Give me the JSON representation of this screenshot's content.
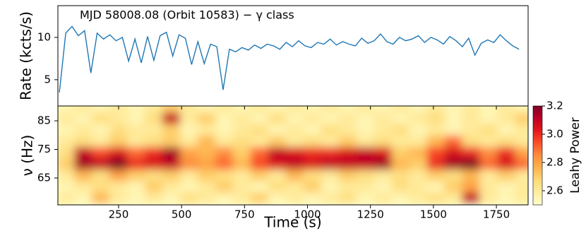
{
  "chart_data": [
    {
      "type": "line",
      "title": "MJD 58008.08 (Orbit 10583) − γ class",
      "y_label": "Rate (kcts/s)",
      "color": "#1f77b4",
      "x": [
        15,
        40,
        65,
        90,
        115,
        140,
        165,
        190,
        215,
        240,
        265,
        290,
        315,
        340,
        365,
        390,
        415,
        440,
        465,
        490,
        515,
        540,
        565,
        590,
        615,
        640,
        665,
        690,
        715,
        740,
        765,
        790,
        815,
        840,
        865,
        890,
        915,
        940,
        965,
        990,
        1015,
        1040,
        1065,
        1090,
        1115,
        1140,
        1165,
        1190,
        1215,
        1240,
        1265,
        1290,
        1315,
        1340,
        1365,
        1390,
        1415,
        1440,
        1465,
        1490,
        1515,
        1540,
        1565,
        1590,
        1615,
        1640,
        1665,
        1690,
        1715,
        1740,
        1765,
        1790,
        1815,
        1840
      ],
      "values": [
        3.5,
        10.5,
        11.3,
        10.2,
        10.8,
        5.8,
        10.5,
        9.8,
        10.3,
        9.6,
        10.0,
        7.2,
        9.8,
        7.0,
        10.1,
        7.3,
        10.2,
        10.6,
        7.8,
        10.3,
        9.9,
        6.8,
        9.5,
        6.9,
        9.2,
        8.9,
        3.8,
        8.6,
        8.3,
        8.8,
        8.5,
        9.1,
        8.7,
        9.2,
        9.0,
        8.6,
        9.4,
        8.9,
        9.6,
        9.0,
        8.8,
        9.4,
        9.2,
        9.8,
        9.1,
        9.5,
        9.2,
        9.0,
        9.9,
        9.3,
        9.6,
        10.4,
        9.5,
        9.2,
        10.0,
        9.6,
        9.8,
        10.2,
        9.4,
        10.0,
        9.7,
        9.2,
        10.1,
        9.6,
        8.9,
        9.9,
        7.9,
        9.3,
        9.7,
        9.4,
        10.3,
        9.6,
        9.0,
        8.6
      ],
      "xlim": [
        9,
        1876
      ],
      "ylim": [
        1.9,
        13.75
      ],
      "yticks": [
        5,
        10
      ]
    },
    {
      "type": "heatmap",
      "x_label": "Time (s)",
      "y_label": "ν (Hz)",
      "colorbar_label": "Leahy Power",
      "x": [
        40,
        110,
        180,
        250,
        320,
        390,
        460,
        530,
        600,
        670,
        740,
        810,
        880,
        950,
        1020,
        1090,
        1160,
        1230,
        1300,
        1370,
        1440,
        1510,
        1580,
        1650,
        1720,
        1790,
        1860
      ],
      "y": [
        58,
        62,
        66,
        70,
        74,
        78,
        82,
        86,
        90
      ],
      "z": [
        [
          2.6,
          2.55,
          2.75,
          2.6,
          2.55,
          2.6,
          2.55,
          2.65,
          2.6,
          2.55,
          2.6,
          2.7,
          2.55,
          2.6,
          2.55,
          2.6,
          2.65,
          2.55,
          2.6,
          2.55,
          2.6,
          2.65,
          2.6,
          3.1,
          2.6,
          2.55,
          2.6
        ],
        [
          2.55,
          2.6,
          2.65,
          2.6,
          2.55,
          2.7,
          2.6,
          2.55,
          2.6,
          2.7,
          2.6,
          2.55,
          2.65,
          2.6,
          2.7,
          2.55,
          2.6,
          2.6,
          2.55,
          2.65,
          2.6,
          2.55,
          2.7,
          2.8,
          2.6,
          2.55,
          2.6
        ],
        [
          2.6,
          2.75,
          2.65,
          2.8,
          2.7,
          2.65,
          2.7,
          2.6,
          2.7,
          2.65,
          2.6,
          2.7,
          2.6,
          2.75,
          2.65,
          2.6,
          2.7,
          2.65,
          2.6,
          2.65,
          2.6,
          2.7,
          2.65,
          2.75,
          2.6,
          2.7,
          2.6
        ],
        [
          2.7,
          3.15,
          3.1,
          3.2,
          3.0,
          3.05,
          3.1,
          2.85,
          2.8,
          2.9,
          2.75,
          2.95,
          3.05,
          3.1,
          3.05,
          3.1,
          3.1,
          3.1,
          3.15,
          2.75,
          2.7,
          3.0,
          3.15,
          3.2,
          2.9,
          3.05,
          2.9
        ],
        [
          2.65,
          3.1,
          2.95,
          3.05,
          2.9,
          3.0,
          3.15,
          2.8,
          2.75,
          2.85,
          2.7,
          2.9,
          3.1,
          3.05,
          3.0,
          3.0,
          3.05,
          3.1,
          3.05,
          2.7,
          2.75,
          2.95,
          3.05,
          3.0,
          2.85,
          3.0,
          2.8
        ],
        [
          2.6,
          2.65,
          2.6,
          2.7,
          2.6,
          2.65,
          2.7,
          2.6,
          2.75,
          2.6,
          2.65,
          2.6,
          2.7,
          2.6,
          2.65,
          2.6,
          2.7,
          2.6,
          2.65,
          2.6,
          2.6,
          2.75,
          2.9,
          2.65,
          2.6,
          2.65,
          2.6
        ],
        [
          2.55,
          2.6,
          2.55,
          2.65,
          2.6,
          2.6,
          2.7,
          2.55,
          2.6,
          2.55,
          2.6,
          2.65,
          2.55,
          2.6,
          2.55,
          2.65,
          2.6,
          2.55,
          2.6,
          2.65,
          2.55,
          2.6,
          2.55,
          2.6,
          2.65,
          2.55,
          2.6
        ],
        [
          2.6,
          2.55,
          2.65,
          2.6,
          2.55,
          2.65,
          3.1,
          2.6,
          2.7,
          2.55,
          2.6,
          2.55,
          2.65,
          2.55,
          2.6,
          2.55,
          2.6,
          2.55,
          2.6,
          2.55,
          2.6,
          2.65,
          2.55,
          2.6,
          2.55,
          2.6,
          2.7
        ],
        [
          2.55,
          2.6,
          2.55,
          2.6,
          2.55,
          2.6,
          2.7,
          2.6,
          2.55,
          2.6,
          2.55,
          2.6,
          2.55,
          2.6,
          2.55,
          2.6,
          2.55,
          2.6,
          2.55,
          2.6,
          2.55,
          2.6,
          2.55,
          2.6,
          2.55,
          2.6,
          2.55
        ]
      ],
      "xlim": [
        9,
        1876
      ],
      "ylim": [
        55.6,
        90.2
      ],
      "xticks": [
        250,
        500,
        750,
        1000,
        1250,
        1500,
        1750
      ],
      "yticks": [
        65,
        75,
        85
      ],
      "zlim": [
        2.5,
        3.2
      ],
      "zticks": [
        2.6,
        2.8,
        {
          "value": 3,
          "label": "3.0"
        },
        3.2
      ],
      "colormap": [
        "#ffffcc",
        "#ffeda0",
        "#fed976",
        "#feb24c",
        "#fd8d3c",
        "#fc4e2a",
        "#e31a1c",
        "#bd0026",
        "#800026"
      ]
    }
  ]
}
